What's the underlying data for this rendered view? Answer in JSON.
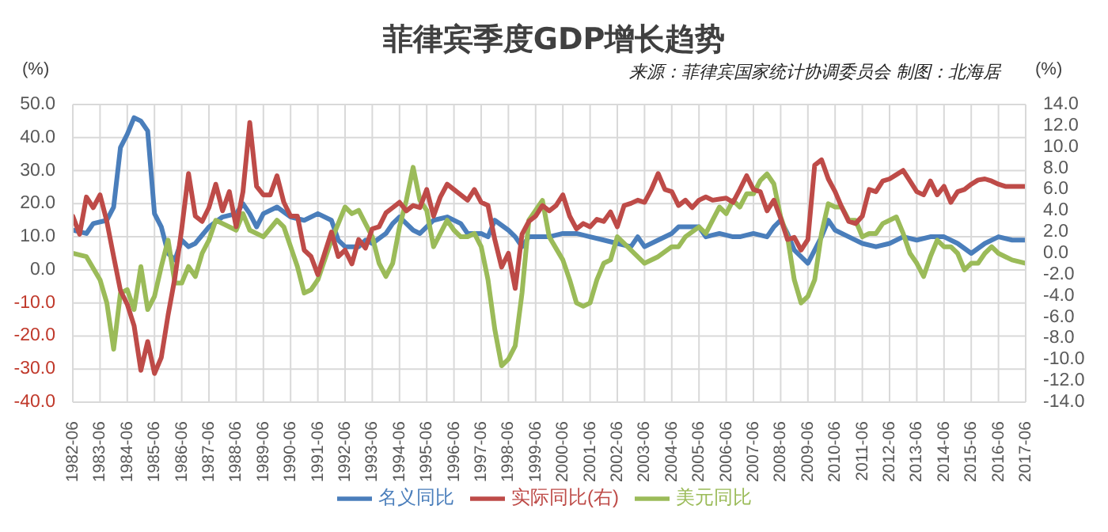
{
  "chart_data": {
    "type": "line",
    "title": "菲律宾季度GDP增长趋势",
    "ylabel": "(%)",
    "y2label": "(%)",
    "annotations": [
      "来源：菲律宾国家统计协调委员会 制图：北海居"
    ],
    "xlim": [
      "1982-06",
      "2017-06"
    ],
    "xticks": [
      "1982-06",
      "1983-06",
      "1984-06",
      "1985-06",
      "1986-06",
      "1987-06",
      "1988-06",
      "1989-06",
      "1990-06",
      "1991-06",
      "1992-06",
      "1993-06",
      "1994-06",
      "1995-06",
      "1996-06",
      "1997-06",
      "1998-06",
      "1999-06",
      "2000-06",
      "2001-06",
      "2002-06",
      "2003-06",
      "2004-06",
      "2005-06",
      "2006-06",
      "2007-06",
      "2008-06",
      "2009-06",
      "2010-06",
      "2011-06",
      "2012-06",
      "2013-06",
      "2014-06",
      "2015-06",
      "2016-06",
      "2017-06"
    ],
    "ylim": [
      -40,
      50
    ],
    "yticks": [
      {
        "value": -40,
        "label": "-40.0"
      },
      {
        "value": -30,
        "label": "-30.0"
      },
      {
        "value": -20,
        "label": "-20.0"
      },
      {
        "value": -10,
        "label": "-10.0"
      },
      {
        "value": 0,
        "label": "0.0"
      },
      {
        "value": 10,
        "label": "10.0"
      },
      {
        "value": 20,
        "label": "20.0"
      },
      {
        "value": 30,
        "label": "30.0"
      },
      {
        "value": 40,
        "label": "40.0"
      },
      {
        "value": 50,
        "label": "50.0"
      }
    ],
    "y2lim": [
      -14,
      14
    ],
    "y2ticks": [
      {
        "value": -14,
        "label": "-14.0"
      },
      {
        "value": -12,
        "label": "-12.0"
      },
      {
        "value": -10,
        "label": "-10.0"
      },
      {
        "value": -8,
        "label": "-8.0"
      },
      {
        "value": -6,
        "label": "-6.0"
      },
      {
        "value": -4,
        "label": "-4.0"
      },
      {
        "value": -2,
        "label": "-2.0"
      },
      {
        "value": 0,
        "label": "0.0"
      },
      {
        "value": 2,
        "label": "2.0"
      },
      {
        "value": 4,
        "label": "4.0"
      },
      {
        "value": 6,
        "label": "6.0"
      },
      {
        "value": 8,
        "label": "8.0"
      },
      {
        "value": 10,
        "label": "10.0"
      },
      {
        "value": 12,
        "label": "12.0"
      },
      {
        "value": 14,
        "label": "14.0"
      }
    ],
    "grid": true,
    "legend": "bottom",
    "series": [
      {
        "name": "名义同比",
        "color": "#4a7ebb",
        "x": [
          "1982-06",
          "1982-12",
          "1983-03",
          "1983-09",
          "1983-12",
          "1984-03",
          "1984-06",
          "1984-09",
          "1984-12",
          "1985-03",
          "1985-06",
          "1985-09",
          "1985-12",
          "1986-03",
          "1986-06",
          "1986-09",
          "1986-12",
          "1987-06",
          "1987-12",
          "1988-06",
          "1988-09",
          "1988-12",
          "1989-03",
          "1989-06",
          "1989-12",
          "1990-06",
          "1990-12",
          "1991-06",
          "1991-12",
          "1992-03",
          "1992-06",
          "1992-12",
          "1993-03",
          "1993-06",
          "1993-12",
          "1994-03",
          "1994-06",
          "1994-12",
          "1995-03",
          "1995-09",
          "1996-03",
          "1996-09",
          "1996-12",
          "1997-06",
          "1997-09",
          "1997-12",
          "1998-06",
          "1998-09",
          "1998-12",
          "1999-03",
          "1999-06",
          "1999-12",
          "2000-06",
          "2000-12",
          "2001-06",
          "2001-12",
          "2002-06",
          "2002-12",
          "2003-03",
          "2003-06",
          "2003-12",
          "2004-06",
          "2004-09",
          "2005-06",
          "2005-09",
          "2006-03",
          "2006-09",
          "2006-12",
          "2007-06",
          "2007-12",
          "2008-03",
          "2008-06",
          "2008-09",
          "2008-12",
          "2009-06",
          "2009-12",
          "2010-03",
          "2010-06",
          "2010-12",
          "2011-06",
          "2011-12",
          "2012-06",
          "2012-12",
          "2013-06",
          "2013-12",
          "2014-06",
          "2014-12",
          "2015-06",
          "2015-12",
          "2016-06",
          "2016-12",
          "2017-06"
        ],
        "values": [
          12,
          11,
          14,
          15,
          19,
          37,
          41,
          46,
          45,
          42,
          17,
          13,
          5,
          3,
          9,
          7,
          8,
          13,
          16,
          17,
          20,
          17,
          13,
          17,
          19,
          16,
          15,
          17,
          15,
          9,
          7,
          7,
          9,
          8,
          11,
          14,
          16,
          12,
          11,
          15,
          16,
          14,
          11,
          11,
          10,
          15,
          12,
          10,
          7,
          10,
          10,
          10,
          11,
          11,
          10,
          9,
          8,
          7,
          10,
          7,
          9,
          11,
          13,
          13,
          10,
          11,
          10,
          10,
          11,
          10,
          13,
          15,
          11,
          6,
          2,
          10,
          15,
          12,
          10,
          8,
          7,
          8,
          10,
          9,
          10,
          10,
          8,
          5,
          8,
          10,
          9,
          9
        ]
      },
      {
        "name": "美元同比",
        "color": "#9bbb59",
        "x": [
          "1982-06",
          "1982-12",
          "1983-06",
          "1983-09",
          "1983-12",
          "1984-03",
          "1984-06",
          "1984-09",
          "1984-12",
          "1985-03",
          "1985-06",
          "1985-09",
          "1985-12",
          "1986-03",
          "1986-06",
          "1986-09",
          "1986-12",
          "1987-03",
          "1987-06",
          "1987-09",
          "1987-12",
          "1988-06",
          "1988-09",
          "1988-12",
          "1989-06",
          "1989-12",
          "1990-03",
          "1990-09",
          "1990-12",
          "1991-03",
          "1991-06",
          "1991-12",
          "1992-06",
          "1992-09",
          "1992-12",
          "1993-03",
          "1993-06",
          "1993-09",
          "1993-12",
          "1994-03",
          "1994-06",
          "1994-09",
          "1994-12",
          "1995-03",
          "1995-06",
          "1995-09",
          "1995-12",
          "1996-03",
          "1996-06",
          "1996-09",
          "1996-12",
          "1997-03",
          "1997-06",
          "1997-09",
          "1997-12",
          "1998-03",
          "1998-06",
          "1998-09",
          "1998-12",
          "1999-03",
          "1999-06",
          "1999-09",
          "1999-12",
          "2000-06",
          "2000-09",
          "2000-12",
          "2001-03",
          "2001-06",
          "2001-09",
          "2001-12",
          "2002-03",
          "2002-06",
          "2002-09",
          "2002-12",
          "2003-06",
          "2003-12",
          "2004-06",
          "2004-09",
          "2004-12",
          "2005-06",
          "2005-09",
          "2005-12",
          "2006-03",
          "2006-06",
          "2006-09",
          "2006-12",
          "2007-03",
          "2007-06",
          "2007-09",
          "2007-12",
          "2008-03",
          "2008-06",
          "2008-09",
          "2008-12",
          "2009-03",
          "2009-06",
          "2009-09",
          "2009-12",
          "2010-03",
          "2010-06",
          "2010-09",
          "2010-12",
          "2011-03",
          "2011-06",
          "2011-09",
          "2011-12",
          "2012-03",
          "2012-06",
          "2012-09",
          "2012-12",
          "2013-03",
          "2013-06",
          "2013-09",
          "2013-12",
          "2014-03",
          "2014-06",
          "2014-09",
          "2014-12",
          "2015-03",
          "2015-06",
          "2015-09",
          "2015-12",
          "2016-03",
          "2016-06",
          "2016-09",
          "2016-12",
          "2017-06"
        ],
        "values": [
          5,
          4,
          -3,
          -10,
          -24,
          -7,
          -6,
          -12,
          1,
          -12,
          -8,
          1,
          9,
          -4,
          -4,
          1,
          -2,
          5,
          9,
          15,
          14,
          12,
          17,
          12,
          10,
          15,
          13,
          1,
          -7,
          -6,
          -3,
          9,
          19,
          17,
          18,
          14,
          10,
          2,
          -2,
          2,
          13,
          21,
          31,
          21,
          18,
          7,
          11,
          15,
          12,
          10,
          10,
          11,
          7,
          -3,
          -18,
          -29,
          -27,
          -23,
          -7,
          15,
          18,
          21,
          10,
          3,
          -3,
          -10,
          -11,
          -10,
          -3,
          2,
          3,
          10,
          8,
          6,
          2,
          4,
          7,
          7,
          10,
          13,
          11,
          15,
          19,
          17,
          21,
          19,
          23,
          23,
          27,
          29,
          26,
          16,
          10,
          -3,
          -10,
          -8,
          -3,
          11,
          20,
          19,
          19,
          15,
          15,
          10,
          11,
          11,
          14,
          15,
          16,
          11,
          5,
          2,
          -2,
          4,
          9,
          7,
          7,
          5,
          0,
          2,
          2,
          5,
          7,
          5,
          4,
          3,
          2
        ]
      },
      {
        "name": "实际同比(右)",
        "color": "#be4b48",
        "axis": "y2",
        "x": [
          "1982-06",
          "1982-09",
          "1982-12",
          "1983-03",
          "1983-06",
          "1983-09",
          "1983-12",
          "1984-03",
          "1984-06",
          "1984-09",
          "1984-12",
          "1985-03",
          "1985-06",
          "1985-09",
          "1985-12",
          "1986-03",
          "1986-06",
          "1986-09",
          "1986-12",
          "1987-03",
          "1987-06",
          "1987-09",
          "1987-12",
          "1988-03",
          "1988-06",
          "1988-09",
          "1988-12",
          "1989-03",
          "1989-06",
          "1989-09",
          "1989-12",
          "1990-03",
          "1990-06",
          "1990-09",
          "1990-12",
          "1991-03",
          "1991-06",
          "1991-09",
          "1991-12",
          "1992-03",
          "1992-06",
          "1992-09",
          "1992-12",
          "1993-03",
          "1993-06",
          "1993-09",
          "1993-12",
          "1994-03",
          "1994-06",
          "1994-09",
          "1994-12",
          "1995-03",
          "1995-06",
          "1995-09",
          "1995-12",
          "1996-03",
          "1996-06",
          "1996-09",
          "1996-12",
          "1997-03",
          "1997-06",
          "1997-09",
          "1997-12",
          "1998-03",
          "1998-06",
          "1998-09",
          "1998-12",
          "1999-03",
          "1999-06",
          "1999-09",
          "1999-12",
          "2000-03",
          "2000-06",
          "2000-09",
          "2000-12",
          "2001-03",
          "2001-06",
          "2001-09",
          "2001-12",
          "2002-03",
          "2002-06",
          "2002-09",
          "2002-12",
          "2003-03",
          "2003-06",
          "2003-09",
          "2003-12",
          "2004-03",
          "2004-06",
          "2004-09",
          "2004-12",
          "2005-03",
          "2005-06",
          "2005-09",
          "2005-12",
          "2006-03",
          "2006-06",
          "2006-09",
          "2006-12",
          "2007-03",
          "2007-06",
          "2007-09",
          "2007-12",
          "2008-03",
          "2008-06",
          "2008-09",
          "2008-12",
          "2009-03",
          "2009-06",
          "2009-09",
          "2009-12",
          "2010-03",
          "2010-06",
          "2010-09",
          "2010-12",
          "2011-03",
          "2011-06",
          "2011-09",
          "2011-12",
          "2012-03",
          "2012-06",
          "2012-09",
          "2012-12",
          "2013-03",
          "2013-06",
          "2013-09",
          "2013-12",
          "2014-03",
          "2014-06",
          "2014-09",
          "2014-12",
          "2015-03",
          "2015-06",
          "2015-09",
          "2015-12",
          "2016-03",
          "2016-06",
          "2016-09",
          "2016-12",
          "2017-03",
          "2017-06"
        ],
        "values": [
          3.5,
          1.8,
          5.3,
          4.3,
          5.5,
          3.0,
          -0.3,
          -3.5,
          -4.8,
          -6.8,
          -11.0,
          -8.3,
          -11.3,
          -9.8,
          -5.8,
          -2.3,
          2.3,
          7.5,
          3.5,
          3.0,
          4.3,
          6.5,
          4.0,
          5.8,
          2.5,
          5.8,
          12.3,
          6.3,
          5.5,
          5.5,
          7.3,
          4.8,
          3.5,
          3.5,
          0.3,
          -0.3,
          -2.0,
          0.0,
          2.0,
          -0.3,
          0.3,
          -1.0,
          1.3,
          0.5,
          2.3,
          2.5,
          3.8,
          4.3,
          4.8,
          4.0,
          4.5,
          4.3,
          6.0,
          3.5,
          5.3,
          6.5,
          6.0,
          5.5,
          5.0,
          6.0,
          4.8,
          4.5,
          1.3,
          -1.3,
          0.0,
          -3.3,
          1.8,
          3.0,
          3.5,
          4.5,
          4.0,
          4.5,
          5.5,
          3.5,
          2.3,
          2.8,
          2.5,
          3.2,
          3.0,
          3.9,
          2.5,
          4.5,
          4.7,
          5.0,
          4.8,
          6.0,
          7.5,
          6.0,
          5.8,
          4.5,
          5.0,
          4.3,
          5.0,
          5.3,
          5.0,
          5.1,
          5.2,
          4.8,
          6.0,
          7.3,
          6.0,
          5.8,
          4.0,
          5.0,
          3.3,
          1.3,
          1.5,
          0.3,
          1.3,
          8.3,
          8.8,
          7.0,
          5.8,
          4.3,
          3.0,
          2.8,
          3.5,
          6.0,
          5.8,
          6.8,
          7.0,
          7.4,
          7.8,
          6.8,
          5.8,
          5.5,
          6.8,
          5.5,
          6.3,
          4.8,
          5.8,
          6.0,
          6.5,
          6.9,
          7.0,
          6.8,
          6.5,
          6.3,
          6.3,
          6.3,
          6.3
        ]
      }
    ]
  }
}
